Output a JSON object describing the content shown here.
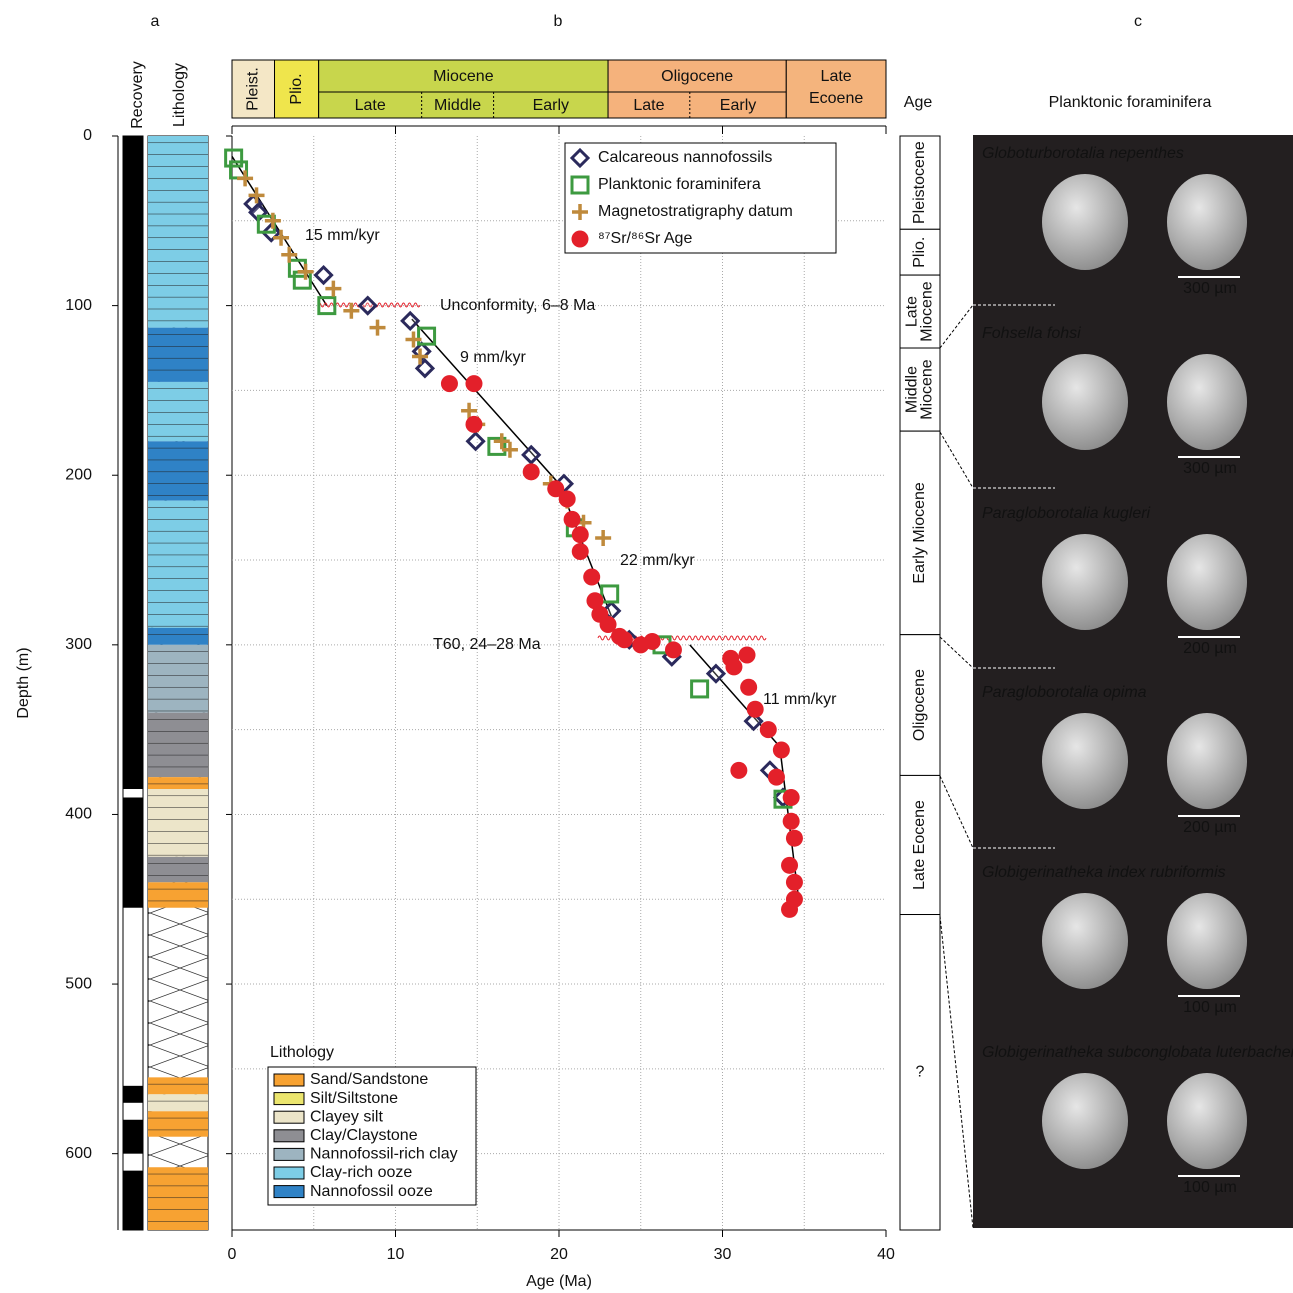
{
  "chart_data": {
    "type": "scatter",
    "panel_labels": [
      "a",
      "b",
      "c"
    ],
    "column_labels": [
      "Recovery",
      "Lithology"
    ],
    "y_label": "Depth (m)",
    "x_label": "Age (Ma)",
    "ylim": [
      0,
      645
    ],
    "yticks": [
      0,
      100,
      200,
      300,
      400,
      500,
      600
    ],
    "y_inverted": true,
    "xlim": [
      0,
      40
    ],
    "xticks": [
      0,
      10,
      20,
      30,
      40
    ],
    "grid": true,
    "xgrid": [
      5,
      10,
      15,
      20,
      25,
      30,
      35
    ],
    "ygrid": [
      50,
      100,
      150,
      200,
      250,
      300,
      350,
      400,
      450,
      500,
      550,
      600
    ],
    "legend_position": "upper right",
    "series": [
      {
        "name": "Calcareous nannofossils",
        "marker": "diamond",
        "color": "#2b2a5c",
        "x": [
          1.3,
          1.6,
          2.4,
          5.6,
          8.3,
          10.9,
          11.6,
          11.8,
          14.9,
          18.3,
          20.3,
          23.2,
          24.3,
          26.9,
          29.6,
          31.9,
          32.9,
          33.7
        ],
        "values": [
          40,
          45,
          57,
          82,
          100,
          109,
          127,
          137,
          180,
          188,
          205,
          280,
          297,
          307,
          317,
          345,
          374,
          390
        ]
      },
      {
        "name": "Planktonic foraminifera",
        "marker": "square",
        "color": "#3d9a40",
        "x": [
          0.1,
          0.4,
          2.1,
          4.0,
          4.3,
          5.8,
          11.9,
          16.2,
          21.0,
          23.1,
          26.3,
          28.6,
          33.7
        ],
        "values": [
          13,
          20,
          52,
          78,
          85,
          100,
          118,
          183,
          231,
          270,
          300,
          326,
          391
        ]
      },
      {
        "name": "Magnetostratigraphy datum",
        "marker": "plus",
        "color": "#bf8a3c",
        "x": [
          0.8,
          1.5,
          2.5,
          3.0,
          3.5,
          4.5,
          6.2,
          7.3,
          8.9,
          11.1,
          11.5,
          14.5,
          15.0,
          16.5,
          17.0,
          19.5,
          20.5,
          21.5,
          22.7
        ],
        "values": [
          25,
          35,
          50,
          60,
          70,
          80,
          90,
          103,
          113,
          120,
          130,
          162,
          170,
          180,
          185,
          205,
          215,
          228,
          237
        ]
      },
      {
        "name": "⁸⁷Sr/⁸⁶Sr Age",
        "marker": "circle",
        "color": "#e3202a",
        "x": [
          13.3,
          14.8,
          14.8,
          18.3,
          19.8,
          20.5,
          20.8,
          21.3,
          21.3,
          22.0,
          22.2,
          22.5,
          23.0,
          23.7,
          24.0,
          25.0,
          25.7,
          27.0,
          30.5,
          30.7,
          31.5,
          31.6,
          32.0,
          32.8,
          33.6,
          31.0,
          33.3,
          34.2,
          34.2,
          34.4,
          34.1,
          34.4,
          34.4,
          34.1
        ],
        "values": [
          146,
          146,
          170,
          198,
          208,
          214,
          226,
          235,
          245,
          260,
          274,
          282,
          288,
          295,
          297,
          300,
          298,
          303,
          308,
          313,
          306,
          325,
          338,
          350,
          362,
          374,
          378,
          390,
          404,
          414,
          430,
          440,
          450,
          456
        ]
      }
    ],
    "trend": {
      "color": "#000000",
      "x": [
        0,
        5.8,
        null,
        11,
        20,
        23.2,
        null,
        28,
        33.5,
        34.7
      ],
      "values": [
        12,
        100,
        null,
        108,
        205,
        283,
        null,
        300,
        360,
        453
      ]
    },
    "annotations": [
      "15 mm/kyr",
      "Unconformity, 6–8 Ma",
      "9 mm/kyr",
      "22 mm/kyr",
      "T60, 24–28 Ma",
      "11 mm/kyr"
    ],
    "epochs": [
      {
        "name": "Pleist.",
        "start": 0,
        "end": 2.6,
        "color": "#f4e7c6"
      },
      {
        "name": "Plio.",
        "start": 2.6,
        "end": 5.3,
        "color": "#efe54c"
      },
      {
        "name": "Miocene",
        "start": 5.3,
        "end": 23,
        "color": "#c8d64c",
        "subepochs": [
          {
            "name": "Late",
            "start": 5.3,
            "end": 11.6
          },
          {
            "name": "Middle",
            "start": 11.6,
            "end": 16
          },
          {
            "name": "Early",
            "start": 16,
            "end": 23
          }
        ]
      },
      {
        "name": "Oligocene",
        "start": 23,
        "end": 33.9,
        "color": "#f5b27c",
        "subepochs": [
          {
            "name": "Late",
            "start": 23,
            "end": 28
          },
          {
            "name": "Early",
            "start": 28,
            "end": 33.9
          }
        ]
      },
      {
        "name": "Late Ecoene",
        "start": 33.9,
        "end": 40,
        "color": "#f4b47d"
      }
    ],
    "age_column_title": "Age",
    "age_column": [
      {
        "lines": [
          "Pleistocene"
        ],
        "top": 0,
        "bottom": 55
      },
      {
        "lines": [
          "Plio."
        ],
        "top": 55,
        "bottom": 82
      },
      {
        "lines": [
          "Late",
          "Miocene"
        ],
        "top": 82,
        "bottom": 125
      },
      {
        "lines": [
          "Middle",
          "Miocene"
        ],
        "top": 125,
        "bottom": 174
      },
      {
        "lines": [
          "Early Miocene"
        ],
        "top": 174,
        "bottom": 294
      },
      {
        "lines": [
          "Oligocene"
        ],
        "top": 294,
        "bottom": 377
      },
      {
        "lines": [
          "Late Eocene"
        ],
        "top": 377,
        "bottom": 459
      },
      {
        "lines": [
          "?"
        ],
        "top": 459,
        "bottom": 645
      }
    ],
    "lithology_legend_title": "Lithology",
    "lithology_legend": [
      {
        "name": "Sand/Sandstone",
        "color": "#f7a232"
      },
      {
        "name": "Silt/Siltstone",
        "color": "#ebe56e"
      },
      {
        "name": "Clayey silt",
        "color": "#ece5c9"
      },
      {
        "name": "Clay/Claystone",
        "color": "#8e8e93"
      },
      {
        "name": "Nannofossil-rich clay",
        "color": "#9db4c0"
      },
      {
        "name": "Clay-rich ooze",
        "color": "#7dcde6"
      },
      {
        "name": "Nannofossil ooze",
        "color": "#2f82c6"
      }
    ],
    "lithology_column": [
      [
        0,
        113,
        5
      ],
      [
        113,
        145,
        6
      ],
      [
        145,
        180,
        5
      ],
      [
        180,
        215,
        6
      ],
      [
        215,
        290,
        5
      ],
      [
        290,
        300,
        6
      ],
      [
        300,
        340,
        4
      ],
      [
        340,
        378,
        3
      ],
      [
        378,
        385,
        0
      ],
      [
        385,
        425,
        2
      ],
      [
        425,
        440,
        3
      ],
      [
        440,
        455,
        0
      ],
      [
        555,
        565,
        0
      ],
      [
        565,
        575,
        2
      ],
      [
        575,
        590,
        0
      ],
      [
        608,
        645,
        0
      ]
    ],
    "recovery": [
      [
        0,
        385
      ],
      [
        390,
        455
      ],
      [
        560,
        570
      ],
      [
        580,
        600
      ],
      [
        610,
        645
      ]
    ],
    "foram_title": "Planktonic foraminifera",
    "forams": [
      {
        "name": "Globoturborotalia nepenthes",
        "scale": "300 µm"
      },
      {
        "name": "Fohsella fohsi",
        "scale": "300 µm"
      },
      {
        "name": "Paragloborotalia kugleri",
        "scale": "200 µm"
      },
      {
        "name": "Paragloborotalia opima",
        "scale": "200 µm"
      },
      {
        "name": "Globigerinatheka index rubriformis",
        "scale": "100 µm"
      },
      {
        "name": "Globigerinatheka subconglobata luterbacheri",
        "scale": "100 µm"
      }
    ]
  }
}
